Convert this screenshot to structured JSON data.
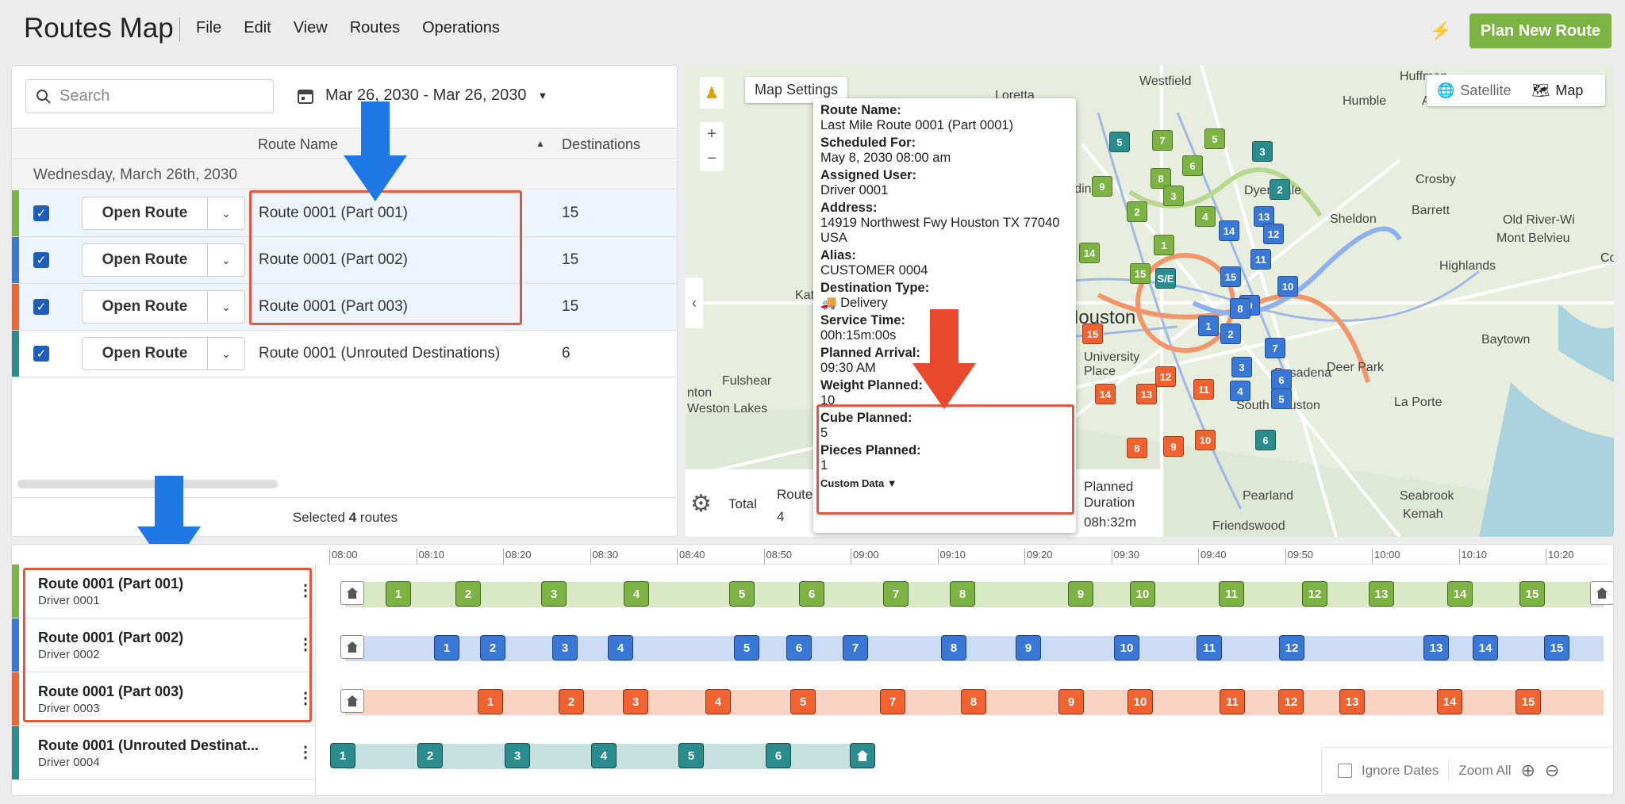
{
  "header": {
    "title": "Routes Map",
    "menu": [
      "File",
      "Edit",
      "View",
      "Routes",
      "Operations"
    ],
    "plan_button": "Plan New Route"
  },
  "routes_panel": {
    "search_placeholder": "Search",
    "date_range": "Mar 26, 2030 - Mar 26, 2030",
    "columns": {
      "route_name": "Route Name",
      "destinations": "Destinations"
    },
    "group_label": "Wednesday, March 26th, 2030",
    "open_label": "Open Route",
    "rows": [
      {
        "name": "Route 0001 (Part 001)",
        "destinations": "15",
        "color": "#7cb342"
      },
      {
        "name": "Route 0001 (Part 002)",
        "destinations": "15",
        "color": "#3a78d8"
      },
      {
        "name": "Route 0001 (Part 003)",
        "destinations": "15",
        "color": "#f06230"
      },
      {
        "name": "Route 0001 (Unrouted Destinations)",
        "destinations": "6",
        "color": "#2a8c8c"
      }
    ],
    "footer_prefix": "Selected ",
    "footer_count": "4",
    "footer_suffix": " routes"
  },
  "map": {
    "settings_label": "Map Settings",
    "type_satellite": "Satellite",
    "type_map": "Map",
    "labels": [
      "Westfield",
      "Huffman",
      "Humble",
      "Atascocita",
      "Loretta",
      "Crosby",
      "Dyersdale",
      "Sheldon",
      "Barrett",
      "Old River-Wi",
      "Mont Belvieu",
      "Highlands",
      "Baytown",
      "Houston",
      "University Place",
      "Pasadena",
      "Deer Park",
      "La Porte",
      "South Houston",
      "Fulshear",
      "Weston Lakes",
      "Pearland",
      "Friendswood",
      "Seabrook",
      "Kemah",
      "Aldine",
      "Katy",
      "nton",
      "Co"
    ],
    "summary": {
      "total": "Total",
      "route_label": "Route",
      "route_value": "4",
      "planned_label": "Planned Duration",
      "planned_value": "08h:32m"
    }
  },
  "tooltip": {
    "fields": [
      {
        "label": "Route Name:",
        "value": "Last Mile Route 0001 (Part 0001)"
      },
      {
        "label": "Scheduled For:",
        "value": "May 8, 2030 08:00 am"
      },
      {
        "label": "Assigned User:",
        "value": "Driver 0001"
      },
      {
        "label": "Address:",
        "value": "14919 Northwest Fwy Houston TX 77040 USA"
      },
      {
        "label": "Alias:",
        "value": "CUSTOMER 0004"
      },
      {
        "label": "Destination Type:",
        "value": "Delivery"
      },
      {
        "label": "Service Time:",
        "value": "00h:15m:00s"
      },
      {
        "label": "Planned Arrival:",
        "value": "09:30 AM"
      },
      {
        "label": "Weight Planned:",
        "value": "10"
      },
      {
        "label": "Cube Planned:",
        "value": "5"
      },
      {
        "label": "Pieces Planned:",
        "value": "1"
      }
    ],
    "custom_data": "Custom Data"
  },
  "timeline": {
    "ticks": [
      "08:00",
      "08:10",
      "08:20",
      "08:30",
      "08:40",
      "08:50",
      "09:00",
      "09:10",
      "09:20",
      "09:30",
      "09:40",
      "09:50",
      "10:00",
      "10:10",
      "10:20"
    ],
    "rows": [
      {
        "title": "Route 0001 (Part 001)",
        "driver": "Driver 0001",
        "color": "#7cb342",
        "lane": "#d9e9c5"
      },
      {
        "title": "Route 0001 (Part 002)",
        "driver": "Driver 0002",
        "color": "#3a78d8",
        "lane": "#cddcf5"
      },
      {
        "title": "Route 0001 (Part 003)",
        "driver": "Driver 0003",
        "color": "#f06230",
        "lane": "#f8d3c3"
      },
      {
        "title": "Route 0001 (Unrouted Destinat...",
        "driver": "Driver 0004",
        "color": "#2a8c8c",
        "lane": "#c6e0e0"
      }
    ],
    "stop_labels": [
      "1",
      "2",
      "3",
      "4",
      "5",
      "6",
      "7",
      "8",
      "9",
      "10",
      "11",
      "12",
      "13",
      "14",
      "15"
    ],
    "tools": {
      "ignore_dates": "Ignore Dates",
      "zoom_all": "Zoom All"
    }
  }
}
